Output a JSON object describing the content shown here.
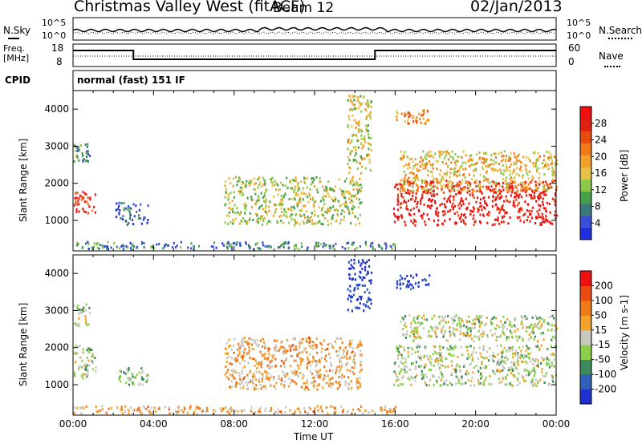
{
  "header": {
    "station": "Christmas Valley West (fitACF)",
    "beam": "Beam 12",
    "date": "02/Jan/2013"
  },
  "top_panels": {
    "nsky_label": "N.Sky",
    "nsearch_label": "N.Search",
    "nsky_ticks": [
      "10^5",
      "10^0"
    ],
    "nsearch_ticks": [
      "10^5",
      "10^0"
    ],
    "freq_label_1": "Freq.",
    "freq_label_2": "[MHz]",
    "freq_ticks": [
      "18",
      "8"
    ],
    "nave_label": "Nave",
    "nave_ticks": [
      "60",
      "0"
    ],
    "cpid_label": "CPID",
    "cpid_value": "normal (fast) 151 IF"
  },
  "chart_data": [
    {
      "type": "heatmap",
      "name": "power",
      "xlabel": "Time UT",
      "ylabel": "Slant Range [km]",
      "xlim": [
        0,
        24
      ],
      "ylim": [
        180,
        4500
      ],
      "x_ticks": [
        "00:00",
        "04:00",
        "08:00",
        "12:00",
        "16:00",
        "20:00",
        "00:00"
      ],
      "y_ticks": [
        "1000",
        "2000",
        "3000",
        "4000"
      ],
      "colorbar": {
        "label": "Power [dB]",
        "ticks": [
          "4",
          "8",
          "12",
          "16",
          "20",
          "24",
          "28"
        ],
        "colors": [
          "#1f2fe0",
          "#3a4fd8",
          "#3a7a7a",
          "#47a04a",
          "#8cc84b",
          "#e6c24a",
          "#f2a22a",
          "#f07a1a",
          "#e84a10",
          "#e02010",
          "#f01010"
        ]
      },
      "regions": [
        {
          "t0": 0.0,
          "t1": 1.1,
          "r0": 1200,
          "r1": 1800,
          "level": 0.85
        },
        {
          "t0": 0.0,
          "t1": 0.8,
          "r0": 2600,
          "r1": 3100,
          "level": 0.3
        },
        {
          "t0": 2.1,
          "t1": 3.7,
          "r0": 900,
          "r1": 1500,
          "level": 0.15
        },
        {
          "t0": 7.5,
          "t1": 14.3,
          "r0": 900,
          "r1": 2200,
          "level": 0.45
        },
        {
          "t0": 0.0,
          "t1": 16.0,
          "r0": 250,
          "r1": 450,
          "level": 0.25
        },
        {
          "t0": 13.6,
          "t1": 14.8,
          "r0": 2300,
          "r1": 4400,
          "level": 0.5
        },
        {
          "t0": 15.9,
          "t1": 24.0,
          "r0": 900,
          "r1": 2100,
          "level": 0.95
        },
        {
          "t0": 16.2,
          "t1": 24.0,
          "r0": 1800,
          "r1": 2900,
          "level": 0.55
        },
        {
          "t0": 16.0,
          "t1": 17.7,
          "r0": 3600,
          "r1": 4000,
          "level": 0.65
        }
      ]
    },
    {
      "type": "heatmap",
      "name": "velocity",
      "xlabel": "Time UT",
      "ylabel": "Slant Range [km]",
      "xlim": [
        0,
        24
      ],
      "ylim": [
        180,
        4500
      ],
      "x_ticks": [
        "00:00",
        "04:00",
        "08:00",
        "12:00",
        "16:00",
        "20:00",
        "00:00"
      ],
      "y_ticks": [
        "1000",
        "2000",
        "3000",
        "4000"
      ],
      "colorbar": {
        "label": "Velocity [m s-1]",
        "ticks": [
          "200",
          "100",
          "50",
          "15",
          "-15",
          "-50",
          "-100",
          "-200"
        ],
        "colors": [
          "#1f2fd0",
          "#2f5fb8",
          "#3a8a5a",
          "#8cd04a",
          "#c8c8c0",
          "#f2a22a",
          "#f07a1a",
          "#e84a10",
          "#f01010"
        ]
      },
      "regions": [
        {
          "t0": 0.0,
          "t1": 1.1,
          "r0": 1200,
          "r1": 2100,
          "level": 0.45
        },
        {
          "t0": 0.0,
          "t1": 0.8,
          "r0": 2600,
          "r1": 3200,
          "level": 0.45
        },
        {
          "t0": 2.1,
          "t1": 3.7,
          "r0": 1000,
          "r1": 1500,
          "level": 0.35
        },
        {
          "t0": 7.5,
          "t1": 14.3,
          "r0": 900,
          "r1": 2300,
          "level": 0.62
        },
        {
          "t0": 0.0,
          "t1": 16.0,
          "r0": 250,
          "r1": 450,
          "level": 0.62
        },
        {
          "t0": 13.6,
          "t1": 14.8,
          "r0": 3000,
          "r1": 4400,
          "level": 0.05
        },
        {
          "t0": 15.9,
          "t1": 24.0,
          "r0": 1000,
          "r1": 2100,
          "level": 0.45
        },
        {
          "t0": 16.2,
          "t1": 24.0,
          "r0": 2200,
          "r1": 2900,
          "level": 0.45
        },
        {
          "t0": 16.0,
          "t1": 17.7,
          "r0": 3600,
          "r1": 4000,
          "level": 0.05
        }
      ]
    }
  ]
}
